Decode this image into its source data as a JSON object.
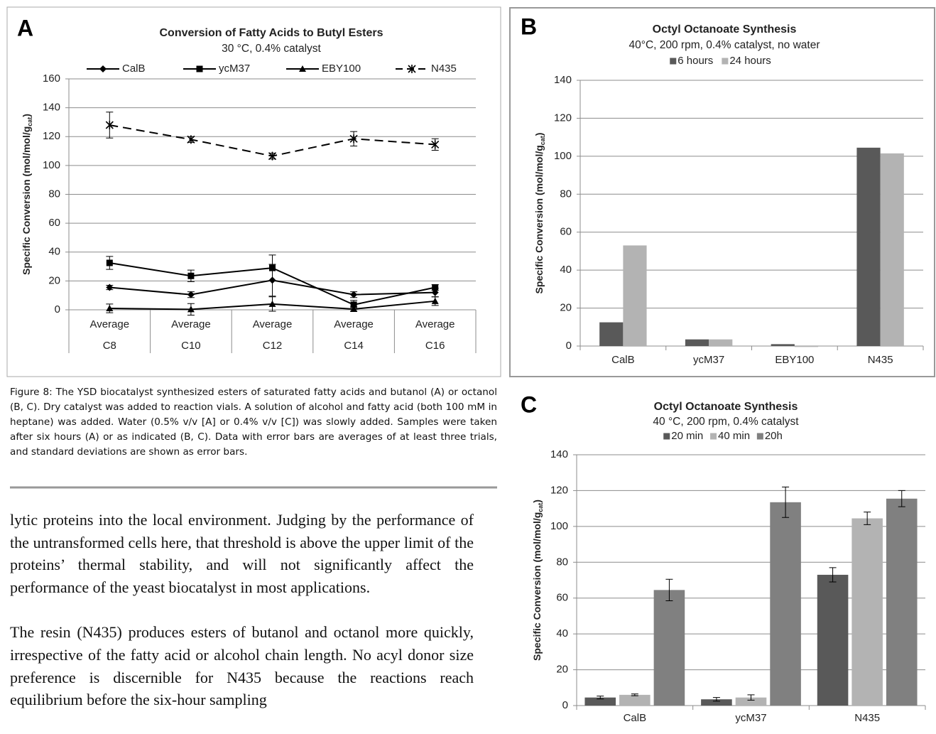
{
  "chart_data": [
    {
      "type": "line",
      "panel": "A",
      "title": "Conversion of Fatty Acids to Butyl Esters",
      "subtitle": "30 °C, 0.4% catalyst",
      "ylabel": [
        "Specific Conversion (mol/mol/g",
        "cat",
        ")"
      ],
      "categories": [
        "C8",
        "C10",
        "C12",
        "C14",
        "C16"
      ],
      "category_stat": [
        "Average",
        "Average",
        "Average",
        "Average",
        "Average"
      ],
      "ylim": [
        0,
        160
      ],
      "yticks": [
        0,
        20,
        40,
        60,
        80,
        100,
        120,
        140,
        160
      ],
      "grid": true,
      "legend": "top",
      "series": [
        {
          "name": "CalB",
          "color": "#000000",
          "marker": "diamond",
          "dashed": false,
          "values": [
            15.5,
            10.5,
            20.5,
            10.5,
            12
          ],
          "errors": [
            1.5,
            2,
            11,
            2,
            3
          ]
        },
        {
          "name": "ycM37",
          "color": "#000000",
          "marker": "square",
          "dashed": false,
          "values": [
            32.5,
            23.5,
            29,
            3.5,
            15.5
          ],
          "errors": [
            4.5,
            4,
            9,
            3,
            2
          ]
        },
        {
          "name": "EBY100",
          "color": "#000000",
          "marker": "triangle",
          "dashed": false,
          "values": [
            1,
            0.3,
            4,
            0.5,
            6
          ],
          "errors": [
            3,
            4,
            5,
            1.5,
            3
          ]
        },
        {
          "name": "N435",
          "color": "#000000",
          "marker": "x",
          "dashed": true,
          "values": [
            128,
            118,
            106.5,
            118.5,
            114.5
          ],
          "errors": [
            9,
            2,
            2,
            5,
            4
          ]
        }
      ]
    },
    {
      "type": "bar",
      "panel": "B",
      "title": "Octyl Octanoate Synthesis",
      "subtitle": "40°C,  200 rpm, 0.4% catalyst, no water",
      "ylabel": [
        "Specific Conversion (mol/mol/g",
        "cat",
        ")"
      ],
      "categories": [
        "CalB",
        "ycM37",
        "EBY100",
        "N435"
      ],
      "ylim": [
        0,
        140
      ],
      "yticks": [
        0,
        20,
        40,
        60,
        80,
        100,
        120,
        140
      ],
      "grid": true,
      "legend": "top",
      "series": [
        {
          "name": "6 hours",
          "color": "#595959",
          "values": [
            12.5,
            3.5,
            1,
            104.5
          ]
        },
        {
          "name": "24 hours",
          "color": "#b3b3b3",
          "values": [
            53,
            3.5,
            -0.5,
            101.5
          ]
        }
      ]
    },
    {
      "type": "bar",
      "panel": "C",
      "title": "Octyl Octanoate Synthesis",
      "subtitle": "40 °C, 200 rpm, 0.4% catalyst",
      "ylabel": [
        "Specific Conversion (mol/mol/g",
        "cat",
        ")"
      ],
      "categories": [
        "CalB",
        "ycM37",
        "N435"
      ],
      "ylim": [
        0,
        140
      ],
      "yticks": [
        0,
        20,
        40,
        60,
        80,
        100,
        120,
        140
      ],
      "grid": true,
      "legend": "top",
      "series": [
        {
          "name": "20 min",
          "color": "#595959",
          "values": [
            4.5,
            3.5,
            73
          ],
          "errors": [
            0.8,
            1,
            4
          ]
        },
        {
          "name": "40 min",
          "color": "#b3b3b3",
          "values": [
            6,
            4.5,
            104.5
          ],
          "errors": [
            0.5,
            1.5,
            3.5
          ]
        },
        {
          "name": "20h",
          "color": "#808080",
          "values": [
            64.5,
            113.5,
            115.5
          ],
          "errors": [
            6,
            8.5,
            4.5
          ]
        }
      ]
    }
  ],
  "caption": "Figure 8: The YSD biocatalyst synthesized esters of saturated fatty acids and butanol (A) or octanol (B, C). Dry catalyst was added to reaction vials. A solution of alcohol and fatty acid (both 100 mM in heptane) was added. Water (0.5% v/v [A] or 0.4% v/v [C]) was slowly added. Samples were taken after six hours (A) or as indicated (B, C). Data with error bars are averages of at least three trials, and standard deviations are shown as error bars.",
  "body": [
    "lytic proteins into the local environment. Judging by the performance of the untransformed cells here, that threshold is above the upper limit of the proteins’ thermal stability, and will not significantly affect the performance of the yeast biocatalyst in most applications.",
    "The resin (N435) produces esters of butanol and octanol more quickly, irrespective of the fatty acid or alcohol chain length. No acyl donor size preference is discernible for N435 because the reactions reach equilibrium before the six-hour sampling"
  ]
}
